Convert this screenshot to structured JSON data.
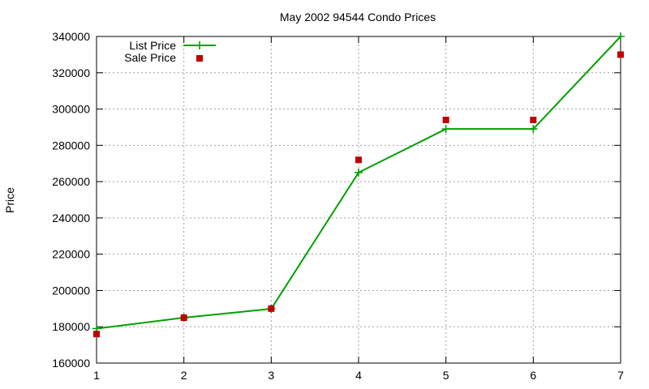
{
  "chart_data": {
    "type": "line",
    "title": "May 2002 94544 Condo Prices",
    "xlabel": "",
    "ylabel": "Price",
    "x": [
      1,
      2,
      3,
      4,
      5,
      6,
      7
    ],
    "xlim": [
      1,
      7
    ],
    "ylim": [
      160000,
      340000
    ],
    "xticks": [
      1,
      2,
      3,
      4,
      5,
      6,
      7
    ],
    "yticks": [
      160000,
      180000,
      200000,
      220000,
      240000,
      260000,
      280000,
      300000,
      320000,
      340000
    ],
    "grid": true,
    "legend_position": "top-left",
    "series": [
      {
        "name": "List Price",
        "type": "line",
        "marker": "plus",
        "color": "#00a000",
        "values": [
          179000,
          185000,
          189900,
          265000,
          289000,
          289000,
          340000
        ]
      },
      {
        "name": "Sale Price",
        "type": "scatter",
        "marker": "square",
        "color": "#c00000",
        "values": [
          176000,
          185000,
          190000,
          272000,
          294000,
          294000,
          330000
        ]
      }
    ]
  }
}
